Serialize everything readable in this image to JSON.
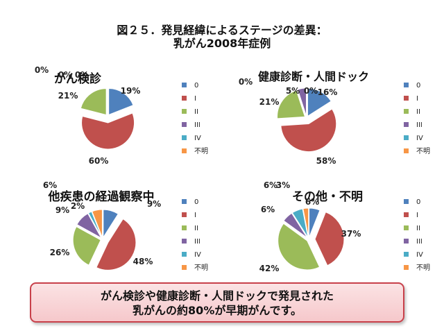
{
  "title": {
    "line1": "図２５．発見経緯によるステージの差異：",
    "line2": "乳がん2008年症例"
  },
  "legend_labels": [
    "0",
    "I",
    "II",
    "III",
    "IV",
    "不明"
  ],
  "colors": [
    "#4f81bd",
    "#c0504d",
    "#9bbb59",
    "#8064a2",
    "#4bacc6",
    "#f79646"
  ],
  "chart_data": [
    {
      "type": "pie",
      "title": "がん検診",
      "categories": [
        "0",
        "I",
        "II",
        "III",
        "IV",
        "不明"
      ],
      "values": [
        19,
        60,
        21,
        0,
        0,
        0
      ],
      "labels": [
        "19%",
        "60%",
        "21%",
        "0%",
        "0%",
        "0%"
      ]
    },
    {
      "type": "pie",
      "title": "健康診断・人間ドック",
      "categories": [
        "0",
        "I",
        "II",
        "III",
        "IV",
        "不明"
      ],
      "values": [
        16,
        58,
        21,
        5,
        0,
        0
      ],
      "labels": [
        "16%",
        "58%",
        "21%",
        "5%",
        "0%",
        "0%"
      ]
    },
    {
      "type": "pie",
      "title": "他疾患の経過観察中",
      "categories": [
        "0",
        "I",
        "II",
        "III",
        "IV",
        "不明"
      ],
      "values": [
        9,
        48,
        26,
        9,
        2,
        6
      ],
      "labels": [
        "9%",
        "48%",
        "26%",
        "9%",
        "2%",
        "6%"
      ]
    },
    {
      "type": "pie",
      "title": "その他・不明",
      "categories": [
        "0",
        "I",
        "II",
        "III",
        "IV",
        "不明"
      ],
      "values": [
        6,
        37,
        42,
        6,
        6,
        3
      ],
      "labels": [
        "6%",
        "37%",
        "42%",
        "6%",
        "6%",
        "3%"
      ]
    }
  ],
  "banner": {
    "line1": "がん検診や健康診断・人間ドックで発見された",
    "line2": "乳がんの約80%が早期がんです。"
  }
}
